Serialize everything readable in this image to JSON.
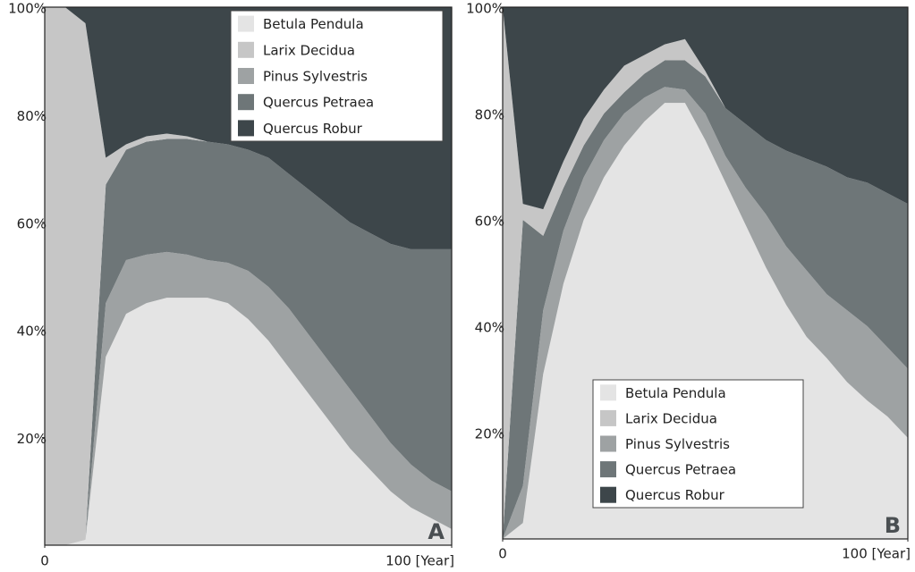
{
  "chart_data": [
    {
      "type": "stacked-area",
      "label": "A",
      "x": [
        0,
        5,
        10,
        15,
        20,
        25,
        30,
        35,
        40,
        45,
        50,
        55,
        60,
        65,
        70,
        75,
        80,
        85,
        90,
        95,
        100
      ],
      "xlim": [
        0,
        100
      ],
      "xticks": [
        0,
        {
          "value": 100,
          "label": "100 [Year]"
        }
      ],
      "ylim": [
        0,
        100
      ],
      "yticks": [
        {
          "value": 20,
          "label": "20%"
        },
        {
          "value": 40,
          "label": "40%"
        },
        {
          "value": 60,
          "label": "60%"
        },
        {
          "value": 80,
          "label": "80%"
        },
        {
          "value": 100,
          "label": "100%"
        }
      ],
      "legend": "upper right",
      "series": [
        {
          "name": "Betula Pendula",
          "color": "#e4e4e4",
          "values": [
            0,
            0,
            1,
            35,
            43,
            45,
            46,
            46,
            46,
            45,
            42,
            38,
            33,
            28,
            23,
            18,
            14,
            10,
            7,
            5,
            3
          ]
        },
        {
          "name": "Larix Decidua",
          "color": "#c6c6c6",
          "values": [
            100,
            100,
            96,
            5,
            1,
            1,
            1,
            0.5,
            0,
            0,
            0,
            0,
            0,
            0,
            0,
            0,
            0,
            0,
            0,
            0,
            0
          ]
        },
        {
          "name": "Pinus Sylvestris",
          "color": "#9ea2a3",
          "values": [
            0,
            0,
            0,
            10,
            10,
            9,
            8.5,
            8,
            7,
            7.5,
            9,
            10,
            11,
            11,
            11,
            11,
            10,
            9,
            8,
            7,
            7
          ]
        },
        {
          "name": "Quercus Petraea",
          "color": "#6e7678",
          "values": [
            0,
            0,
            0,
            22,
            20.5,
            21,
            21,
            21.5,
            22,
            22,
            22.5,
            24,
            25,
            27,
            29,
            31,
            34,
            37,
            40,
            43,
            45
          ]
        },
        {
          "name": "Quercus Robur",
          "color": "#3d464a",
          "values": [
            0,
            0,
            3,
            28,
            25.5,
            24,
            23.5,
            24,
            25,
            25.5,
            26.5,
            28,
            31,
            34,
            37,
            40,
            42,
            44,
            45,
            45,
            45
          ]
        }
      ]
    },
    {
      "type": "stacked-area",
      "label": "B",
      "x": [
        0,
        5,
        10,
        15,
        20,
        25,
        30,
        35,
        40,
        45,
        50,
        55,
        60,
        65,
        70,
        75,
        80,
        85,
        90,
        95,
        100
      ],
      "xlim": [
        0,
        100
      ],
      "xticks": [
        0,
        {
          "value": 100,
          "label": "100 [Year]"
        }
      ],
      "ylim": [
        0,
        100
      ],
      "yticks": [
        {
          "value": 20,
          "label": "20%"
        },
        {
          "value": 40,
          "label": "40%"
        },
        {
          "value": 60,
          "label": "60%"
        },
        {
          "value": 80,
          "label": "80%"
        },
        {
          "value": 100,
          "label": "100%"
        }
      ],
      "legend": "lower center",
      "series": [
        {
          "name": "Betula Pendula",
          "color": "#e4e4e4",
          "values": [
            0,
            3,
            31,
            48,
            60,
            68,
            74,
            78.5,
            82,
            82,
            75,
            67,
            59,
            51,
            44,
            38,
            34,
            29.5,
            26,
            23,
            19
          ]
        },
        {
          "name": "Larix Decidua",
          "color": "#c6c6c6",
          "values": [
            100,
            3,
            5,
            5,
            5,
            4.5,
            5,
            3.5,
            3,
            4,
            1,
            0,
            0,
            0,
            0,
            0,
            0,
            0,
            0,
            0,
            0
          ]
        },
        {
          "name": "Pinus Sylvestris",
          "color": "#9ea2a3",
          "values": [
            0,
            7,
            12,
            10,
            8,
            7,
            6,
            4.5,
            3,
            2.5,
            5,
            5,
            7,
            10,
            11,
            12.5,
            12,
            13.5,
            14,
            13,
            13
          ]
        },
        {
          "name": "Quercus Petraea",
          "color": "#6e7678",
          "values": [
            0,
            50,
            14,
            8,
            6,
            5,
            4,
            4.5,
            5,
            5.5,
            7,
            9,
            12,
            14,
            18,
            21,
            24,
            25,
            27,
            29,
            31
          ]
        },
        {
          "name": "Quercus Robur",
          "color": "#3d464a",
          "values": [
            0,
            37,
            38,
            29,
            21,
            15.5,
            11,
            9,
            7,
            6,
            12,
            19,
            22,
            25,
            27,
            28.5,
            30,
            32,
            33,
            35,
            37
          ]
        }
      ]
    }
  ]
}
